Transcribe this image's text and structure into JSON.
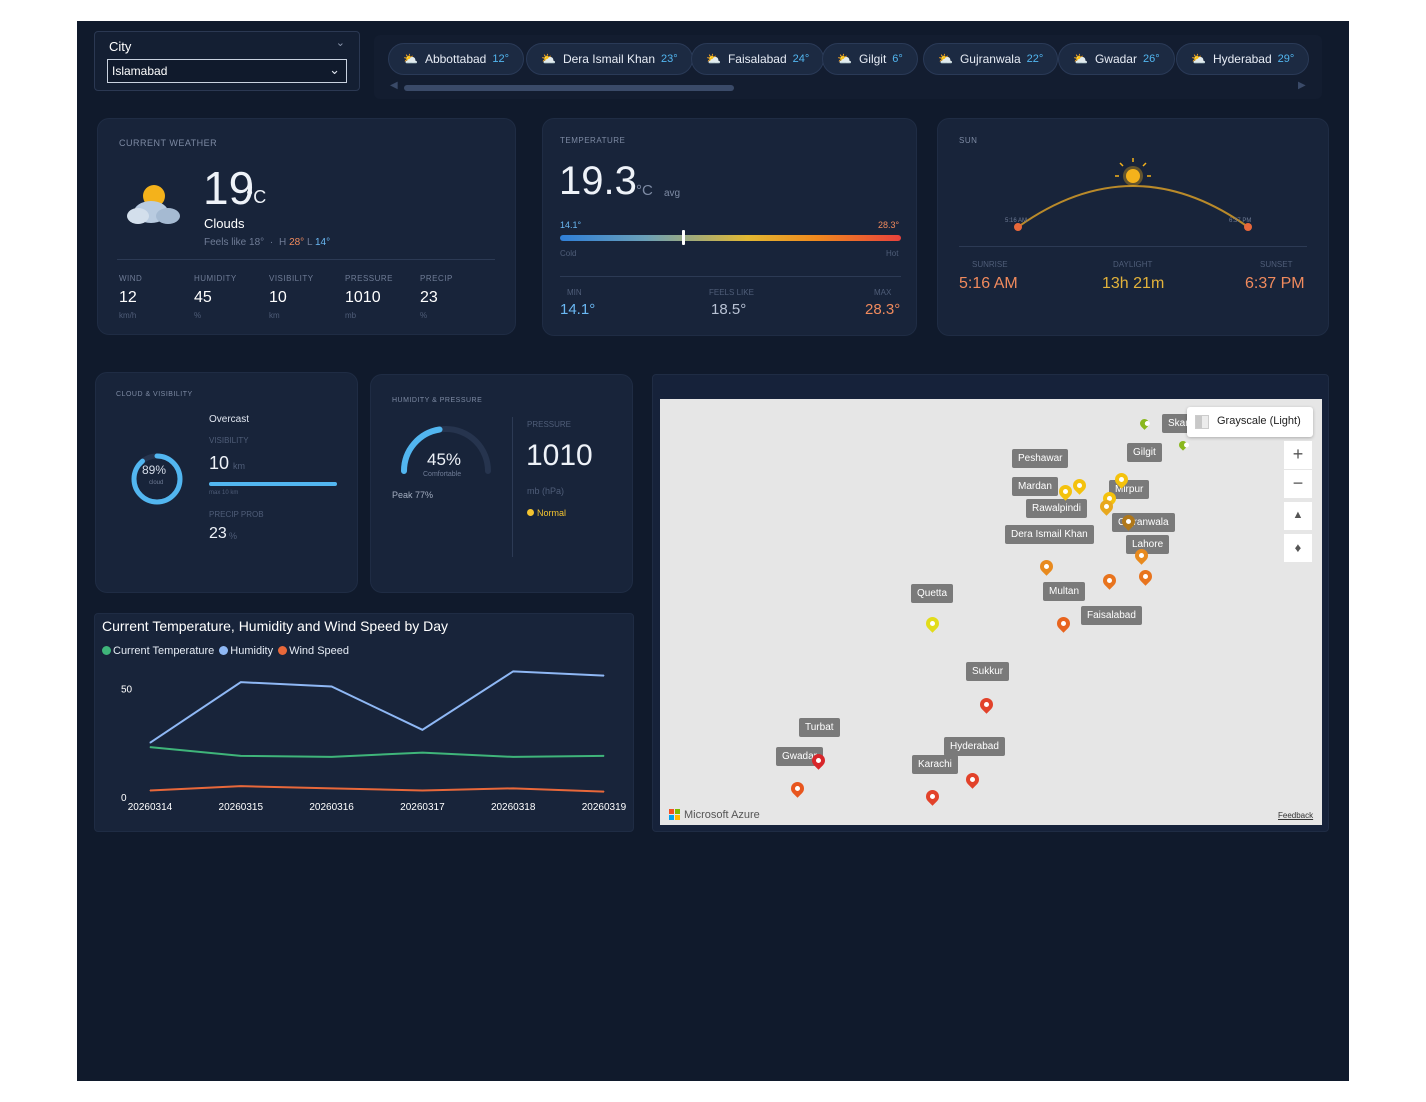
{
  "slicer": {
    "title": "City",
    "value": "Islamabad"
  },
  "cities": [
    {
      "name": "Abbottabad",
      "temp": "12°"
    },
    {
      "name": "Dera Ismail Khan",
      "temp": "23°"
    },
    {
      "name": "Faisalabad",
      "temp": "24°"
    },
    {
      "name": "Gilgit",
      "temp": "6°"
    },
    {
      "name": "Gujranwala",
      "temp": "22°"
    },
    {
      "name": "Gwadar",
      "temp": "26°"
    },
    {
      "name": "Hyderabad",
      "temp": "29°"
    }
  ],
  "current": {
    "label": "CURRENT WEATHER",
    "temp": "19",
    "unit": "°C",
    "condition": "Clouds",
    "feels": "Feels like 18°",
    "high": "28°",
    "low": "14°",
    "h_prefix": "H",
    "l_prefix": "L",
    "stats": [
      {
        "label": "WIND",
        "value": "12",
        "unit": "km/h"
      },
      {
        "label": "HUMIDITY",
        "value": "45",
        "unit": "%"
      },
      {
        "label": "VISIBILITY",
        "value": "10",
        "unit": "km"
      },
      {
        "label": "PRESSURE",
        "value": "1010",
        "unit": "mb"
      },
      {
        "label": "PRECIP",
        "value": "23",
        "unit": "%"
      }
    ]
  },
  "temperature": {
    "label": "TEMPERATURE",
    "avg": "19.3",
    "unit": "°C",
    "avg_word": "avg",
    "min_label": "14.1°",
    "max_label": "28.3°",
    "cold": "Cold",
    "hot": "Hot",
    "marker_fraction": 0.36,
    "min_title": "MIN",
    "feels_title": "FEELS LIKE",
    "max_title": "MAX",
    "min": "14.1°",
    "feels": "18.5°",
    "max": "28.3°"
  },
  "sun": {
    "label": "SUN",
    "rise_small": "5:16 AM",
    "set_small": "6:37 PM",
    "sunrise_title": "SUNRISE",
    "daylight_title": "DAYLIGHT",
    "sunset_title": "SUNSET",
    "sunrise": "5:16 AM",
    "daylight": "13h 21m",
    "sunset": "6:37 PM"
  },
  "cloud": {
    "label": "CLOUD & VISIBILITY",
    "cover_pct": "89%",
    "cover_word": "cloud",
    "cover_fraction": 0.89,
    "summary": "Overcast",
    "vis_title": "VISIBILITY",
    "vis": "10",
    "vis_unit": "km",
    "vis_fraction": 1.0,
    "vis_max": "max 10 km",
    "precip_title": "PRECIP PROB",
    "precip": "23",
    "precip_unit": "%"
  },
  "humidity": {
    "label": "HUMIDITY & PRESSURE",
    "value": "45%",
    "word": "Comfortable",
    "fraction": 0.45,
    "peak": "Peak 77%",
    "pressure_title": "PRESSURE",
    "pressure": "1010",
    "pressure_unit": "mb (hPa)",
    "status": "Normal"
  },
  "chart_data": {
    "type": "line",
    "title": "Current Temperature, Humidity and Wind Speed by Day",
    "categories": [
      "20260314",
      "20260315",
      "20260316",
      "20260317",
      "20260318",
      "20260319"
    ],
    "ylim": [
      0,
      60
    ],
    "yticks": [
      "0",
      "50"
    ],
    "series": [
      {
        "name": "Current Temperature",
        "color": "#3fb57a",
        "values": [
          23,
          19,
          18.5,
          20.5,
          18.5,
          19
        ]
      },
      {
        "name": "Humidity",
        "color": "#8fb8f5",
        "values": [
          25,
          53,
          51,
          31,
          58,
          56
        ]
      },
      {
        "name": "Wind Speed",
        "color": "#e8683a",
        "values": [
          3,
          5,
          4,
          3,
          4,
          2.5
        ]
      }
    ]
  },
  "map": {
    "style_label": "Grayscale (Light)",
    "brand": "Microsoft Azure",
    "feedback": "Feedback",
    "labels": [
      "Peshawar",
      "Gilgit",
      "Mardan",
      "Mirpur",
      "Rawalpindi",
      "Gujranwala",
      "Dera Ismail Khan",
      "Lahore",
      "Quetta",
      "Multan",
      "Faisalabad",
      "Sukkur",
      "Turbat",
      "Hyderabad",
      "Gwadar",
      "Karachi",
      "Skar"
    ]
  }
}
